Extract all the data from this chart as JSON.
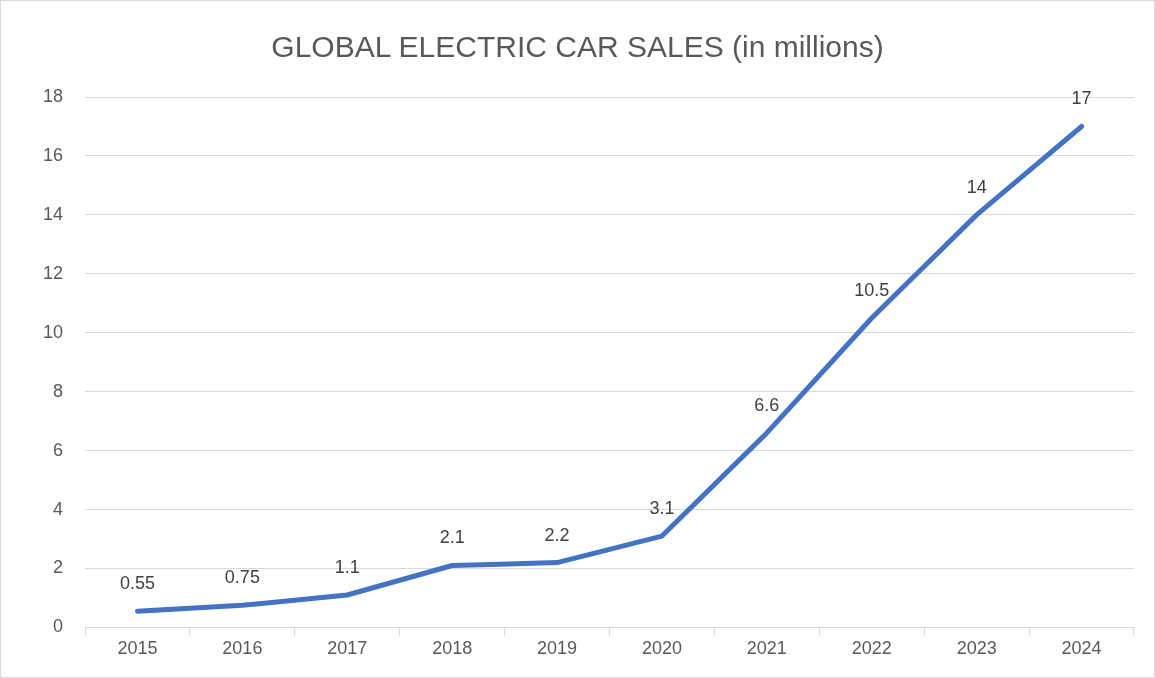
{
  "chart_data": {
    "type": "line",
    "title": "GLOBAL ELECTRIC CAR SALES (in millions)",
    "categories": [
      "2015",
      "2016",
      "2017",
      "2018",
      "2019",
      "2020",
      "2021",
      "2022",
      "2023",
      "2024"
    ],
    "series": [
      {
        "color": "#4472c4",
        "values": [
          0.55,
          0.75,
          1.1,
          2.1,
          2.2,
          3.1,
          6.6,
          10.5,
          14,
          17
        ]
      }
    ],
    "ylim": [
      0,
      18
    ],
    "yticks": [
      0,
      2,
      4,
      6,
      8,
      10,
      12,
      14,
      16,
      18
    ],
    "grid": "y",
    "legend": false,
    "marker": "none",
    "line_style": "solid",
    "data_labels": true
  }
}
